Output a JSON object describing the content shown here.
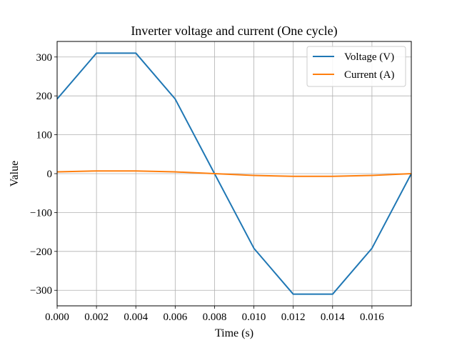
{
  "chart_data": {
    "type": "line",
    "title": "Inverter voltage and current (One cycle)",
    "xlabel": "Time (s)",
    "ylabel": "Value",
    "xlim": [
      0.0,
      0.018
    ],
    "ylim": [
      -340,
      340
    ],
    "xticks": [
      0.0,
      0.002,
      0.004,
      0.006,
      0.008,
      0.01,
      0.012,
      0.014,
      0.016
    ],
    "xtick_labels": [
      "0.000",
      "0.002",
      "0.004",
      "0.006",
      "0.008",
      "0.010",
      "0.012",
      "0.014",
      "0.016"
    ],
    "yticks": [
      300,
      200,
      100,
      0,
      -100,
      -200,
      -300
    ],
    "ytick_labels": [
      "300",
      "200",
      "100",
      "0",
      "−100",
      "−200",
      "−300"
    ],
    "grid": true,
    "legend_position": "top-right",
    "series": [
      {
        "name": "Voltage (V)",
        "color": "#1f77b4",
        "x": [
          0.0,
          0.002,
          0.004,
          0.006,
          0.008,
          0.01,
          0.012,
          0.014,
          0.016,
          0.018
        ],
        "y": [
          192,
          310,
          310,
          192,
          0,
          -192,
          -310,
          -310,
          -192,
          0
        ]
      },
      {
        "name": "Current (A)",
        "color": "#ff7f0e",
        "x": [
          0.0,
          0.002,
          0.004,
          0.006,
          0.008,
          0.01,
          0.012,
          0.014,
          0.016,
          0.018
        ],
        "y": [
          4.5,
          7.0,
          7.0,
          4.5,
          0,
          -4.5,
          -7.0,
          -7.0,
          -4.5,
          0
        ]
      }
    ]
  }
}
